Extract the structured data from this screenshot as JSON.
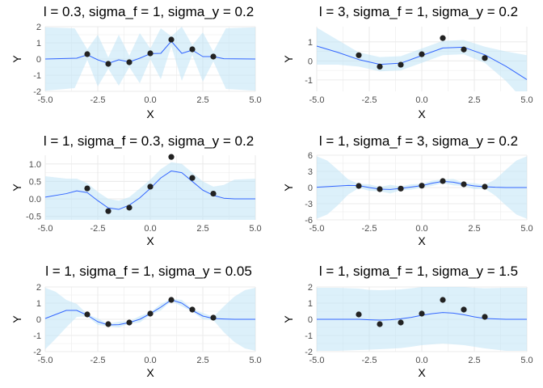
{
  "chart_data": [
    {
      "type": "line",
      "title": "l = 0.3, sigma_f = 1, sigma_y = 0.2",
      "xlabel": "X",
      "ylabel": "Y",
      "xlim": [
        -5,
        5
      ],
      "ylim": [
        -2,
        2
      ],
      "xticks": [
        "-5.0",
        "-2.5",
        "0.0",
        "2.5",
        "5.0"
      ],
      "yticks": [
        "-2",
        "-1",
        "0",
        "1",
        "2"
      ],
      "grid": true,
      "observations": {
        "x": [
          -3,
          -2,
          -1,
          0,
          1,
          2,
          3
        ],
        "y": [
          0.3,
          -0.3,
          -0.2,
          0.35,
          1.2,
          0.6,
          0.15
        ]
      },
      "posterior_mean": {
        "x": [
          -5,
          -3.5,
          -3,
          -2.5,
          -2,
          -1.5,
          -1,
          -0.5,
          0,
          0.5,
          1,
          1.5,
          2,
          2.5,
          3,
          3.5,
          5
        ],
        "y": [
          0,
          0.05,
          0.26,
          -0.05,
          -0.27,
          -0.05,
          -0.18,
          0.05,
          0.33,
          0.35,
          1.1,
          0.35,
          0.55,
          0.15,
          0.15,
          0.02,
          0
        ]
      },
      "band": {
        "x": [
          -5,
          -3.6,
          -3,
          -2.5,
          -2,
          -1.5,
          -1,
          -0.5,
          0,
          0.5,
          1,
          1.5,
          2,
          2.5,
          3,
          3.6,
          5
        ],
        "upper": [
          1.96,
          1.9,
          0.6,
          1.5,
          0.1,
          1.5,
          0.2,
          1.6,
          0.65,
          1.9,
          1.4,
          2.0,
          0.85,
          1.65,
          0.45,
          1.9,
          1.96
        ],
        "lower": [
          -1.96,
          -1.8,
          -0.05,
          -1.7,
          -0.6,
          -1.65,
          -0.5,
          -1.5,
          0.0,
          -1.25,
          0.8,
          -1.35,
          0.25,
          -1.4,
          -0.15,
          -1.85,
          -1.96
        ]
      }
    },
    {
      "type": "line",
      "title": "l = 3, sigma_f = 1, sigma_y = 0.2",
      "xlabel": "X",
      "ylabel": "Y",
      "xlim": [
        -5,
        5
      ],
      "ylim": [
        -1.6,
        1.8
      ],
      "xticks": [
        "-5.0",
        "-2.5",
        "0.0",
        "2.5",
        "5.0"
      ],
      "yticks": [
        "-1",
        "0",
        "1"
      ],
      "grid": true,
      "observations": {
        "x": [
          -3,
          -2,
          -1,
          0,
          1,
          2,
          3
        ],
        "y": [
          0.3,
          -0.3,
          -0.2,
          0.35,
          1.2,
          0.6,
          0.15
        ]
      },
      "posterior_mean": {
        "x": [
          -5,
          -4,
          -3,
          -2,
          -1,
          0,
          1,
          2,
          3,
          4,
          5
        ],
        "y": [
          0.78,
          0.45,
          0.07,
          -0.18,
          -0.12,
          0.28,
          0.68,
          0.72,
          0.32,
          -0.28,
          -0.98
        ]
      },
      "band": {
        "x": [
          -5,
          -4,
          -3,
          -2,
          -1,
          0,
          1,
          2,
          3,
          4,
          5
        ],
        "upper": [
          1.75,
          1.1,
          0.45,
          0.2,
          0.25,
          0.65,
          1.05,
          1.1,
          0.75,
          0.5,
          0.3
        ],
        "lower": [
          -0.2,
          -0.2,
          -0.3,
          -0.55,
          -0.5,
          -0.1,
          0.3,
          0.35,
          -0.1,
          -1.05,
          -2.25
        ]
      }
    },
    {
      "type": "line",
      "title": "l = 1, sigma_f = 0.3, sigma_y = 0.2",
      "xlabel": "X",
      "ylabel": "Y",
      "xlim": [
        -5,
        5
      ],
      "ylim": [
        -0.6,
        1.25
      ],
      "xticks": [
        "-5.0",
        "-2.5",
        "0.0",
        "2.5",
        "5.0"
      ],
      "yticks": [
        "-0.5",
        "0.0",
        "0.5",
        "1.0"
      ],
      "grid": true,
      "observations": {
        "x": [
          -3,
          -2,
          -1,
          0,
          1,
          2,
          3
        ],
        "y": [
          0.3,
          -0.35,
          -0.25,
          0.35,
          1.2,
          0.6,
          0.15
        ]
      },
      "posterior_mean": {
        "x": [
          -5,
          -4,
          -3.5,
          -3,
          -2.5,
          -2,
          -1.5,
          -1,
          -0.5,
          0,
          0.5,
          1,
          1.5,
          2,
          2.5,
          3,
          3.5,
          4,
          5
        ],
        "y": [
          0.05,
          0.15,
          0.23,
          0.18,
          -0.05,
          -0.26,
          -0.3,
          -0.18,
          0.03,
          0.3,
          0.6,
          0.8,
          0.75,
          0.5,
          0.25,
          0.1,
          0.02,
          0.0,
          0.0
        ]
      },
      "band": {
        "x": [
          -5,
          -4,
          -3.5,
          -3,
          -2.5,
          -2,
          -1.5,
          -1,
          -0.5,
          0,
          0.5,
          1,
          1.5,
          2,
          2.5,
          3,
          3.5,
          4,
          5
        ],
        "upper": [
          0.65,
          0.58,
          0.58,
          0.45,
          0.2,
          0.0,
          -0.05,
          0.05,
          0.3,
          0.55,
          0.85,
          1.05,
          1.0,
          0.75,
          0.5,
          0.35,
          0.4,
          0.55,
          0.58
        ]
      }
    },
    {
      "type": "line",
      "title": "l = 1, sigma_f = 3, sigma_y = 0.2",
      "xlabel": "X",
      "ylabel": "Y",
      "xlim": [
        -5,
        5
      ],
      "ylim": [
        -6,
        6
      ],
      "xticks": [
        "-5.0",
        "-2.5",
        "0.0",
        "2.5",
        "5.0"
      ],
      "yticks": [
        "-6",
        "-3",
        "0",
        "3",
        "6"
      ],
      "grid": true,
      "observations": {
        "x": [
          -3,
          -2,
          -1,
          0,
          1,
          2,
          3
        ],
        "y": [
          0.3,
          -0.3,
          -0.2,
          0.35,
          1.2,
          0.6,
          0.15
        ]
      },
      "posterior_mean": {
        "x": [
          -5,
          -4,
          -3.5,
          -3,
          -2.5,
          -2,
          -1.5,
          -1,
          -0.5,
          0,
          0.5,
          1,
          1.5,
          2,
          2.5,
          3,
          3.5,
          4,
          5
        ],
        "y": [
          0.05,
          0.28,
          0.4,
          0.35,
          0.0,
          -0.3,
          -0.35,
          -0.15,
          0.1,
          0.35,
          0.8,
          1.15,
          1.0,
          0.6,
          0.3,
          0.15,
          0.05,
          0.0,
          0.0
        ]
      },
      "band": {
        "x": [
          -5,
          -4.5,
          -4,
          -3.5,
          -3,
          -2.5,
          -2,
          -1.5,
          -1,
          -0.5,
          0,
          0.5,
          1,
          1.5,
          2,
          2.5,
          3,
          3.5,
          4,
          4.5,
          5
        ],
        "upper": [
          5.8,
          5.0,
          3.3,
          1.5,
          0.7,
          0.6,
          0.1,
          0.5,
          0.2,
          0.6,
          0.7,
          1.3,
          1.5,
          1.6,
          0.9,
          0.8,
          0.5,
          1.5,
          3.3,
          5.0,
          5.8
        ],
        "lower": [
          -5.8,
          -5.0,
          -3.3,
          -1.3,
          -0.1,
          -0.6,
          -0.7,
          -1.1,
          -0.5,
          -0.4,
          0.0,
          0.3,
          0.8,
          0.4,
          0.3,
          -0.3,
          -0.2,
          -1.5,
          -3.3,
          -5.0,
          -5.8
        ]
      }
    },
    {
      "type": "line",
      "title": "l = 1, sigma_f = 1, sigma_y = 0.05",
      "xlabel": "X",
      "ylabel": "Y",
      "xlim": [
        -5,
        5
      ],
      "ylim": [
        -2,
        2
      ],
      "xticks": [
        "-5.0",
        "-2.5",
        "0.0",
        "2.5",
        "5.0"
      ],
      "yticks": [
        "-2",
        "-1",
        "0",
        "1",
        "2"
      ],
      "grid": true,
      "observations": {
        "x": [
          -3,
          -2,
          -1,
          0,
          1,
          2,
          3
        ],
        "y": [
          0.3,
          -0.3,
          -0.2,
          0.35,
          1.2,
          0.6,
          0.1
        ]
      },
      "posterior_mean": {
        "x": [
          -5,
          -4.5,
          -4,
          -3.5,
          -3,
          -2.5,
          -2,
          -1.5,
          -1,
          -0.5,
          0,
          0.5,
          1,
          1.5,
          2,
          2.5,
          3,
          3.5,
          4,
          5
        ],
        "y": [
          0.05,
          0.3,
          0.55,
          0.55,
          0.25,
          -0.15,
          -0.35,
          -0.33,
          -0.2,
          0.0,
          0.35,
          0.75,
          1.2,
          1.0,
          0.55,
          0.2,
          0.05,
          0.02,
          0.0,
          0.0
        ]
      },
      "band": {
        "x": [
          -5,
          -4.5,
          -4,
          -3.5,
          -3,
          -2.5,
          -2,
          -1.5,
          -1,
          -0.5,
          0,
          0.5,
          1,
          1.5,
          2,
          2.5,
          3,
          3.5,
          4,
          4.5,
          5
        ],
        "upper": [
          1.95,
          1.7,
          1.2,
          0.95,
          0.32,
          0.05,
          -0.27,
          -0.15,
          -0.13,
          0.2,
          0.43,
          0.95,
          1.27,
          1.2,
          0.63,
          0.4,
          0.15,
          0.8,
          1.4,
          1.8,
          1.95
        ],
        "lower": [
          -1.85,
          -1.2,
          -0.5,
          0.15,
          0.18,
          -0.35,
          -0.43,
          -0.5,
          -0.27,
          -0.2,
          0.27,
          0.55,
          1.13,
          0.8,
          0.47,
          0.0,
          -0.05,
          -0.8,
          -1.4,
          -1.8,
          -1.95
        ]
      }
    },
    {
      "type": "line",
      "title": "l = 1, sigma_f = 1, sigma_y = 1.5",
      "xlabel": "X",
      "ylabel": "Y",
      "xlim": [
        -5,
        5
      ],
      "ylim": [
        -2,
        2
      ],
      "xticks": [
        "-5.0",
        "-2.5",
        "0.0",
        "2.5",
        "5.0"
      ],
      "yticks": [
        "-2",
        "-1",
        "0",
        "1",
        "2"
      ],
      "grid": true,
      "observations": {
        "x": [
          -3,
          -2,
          -1,
          0,
          1,
          2,
          3
        ],
        "y": [
          0.3,
          -0.3,
          -0.2,
          0.35,
          1.2,
          0.6,
          0.15
        ]
      },
      "posterior_mean": {
        "x": [
          -5,
          -4,
          -3,
          -2.5,
          -2,
          -1.5,
          -1,
          -0.5,
          0,
          0.5,
          1,
          1.5,
          2,
          2.5,
          3,
          4,
          5
        ],
        "y": [
          0.0,
          0.0,
          0.0,
          -0.03,
          -0.05,
          -0.03,
          0.03,
          0.12,
          0.25,
          0.35,
          0.42,
          0.38,
          0.28,
          0.15,
          0.05,
          0.0,
          0.0
        ]
      },
      "band": {
        "x": [
          -5,
          -4,
          -3,
          -2.5,
          -2,
          -1.5,
          -1,
          -0.5,
          0,
          0.5,
          1,
          1.5,
          2,
          2.5,
          3,
          4,
          5
        ],
        "upper": [
          1.95,
          1.95,
          1.9,
          1.82,
          1.8,
          1.82,
          1.85,
          1.92,
          2.0,
          2.05,
          2.1,
          2.05,
          2.0,
          1.95,
          1.92,
          1.95,
          1.95
        ],
        "lower": [
          -1.95,
          -1.95,
          -1.9,
          -1.88,
          -1.85,
          -1.82,
          -1.78,
          -1.7,
          -1.6,
          -1.55,
          -1.5,
          -1.55,
          -1.6,
          -1.7,
          -1.8,
          -1.95,
          -1.95
        ]
      }
    }
  ],
  "colors": {
    "band": "#bfe3f5",
    "line": "#3366ff",
    "point": "#222222",
    "grid": "#ebebeb",
    "tick": "#4d4d4d",
    "background": "#ffffff"
  }
}
